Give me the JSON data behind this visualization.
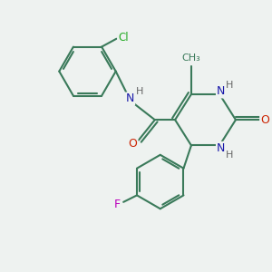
{
  "bg_color": "#eef2f0",
  "atom_colors": {
    "C": "#3a7a5a",
    "N": "#1a1aaa",
    "O": "#cc2200",
    "Cl": "#22aa22",
    "F": "#bb00bb",
    "H": "#666666"
  },
  "bond_color": "#3a7a5a",
  "figsize": [
    3.0,
    3.0
  ],
  "dpi": 100,
  "xlim": [
    0,
    10
  ],
  "ylim": [
    0,
    10
  ]
}
